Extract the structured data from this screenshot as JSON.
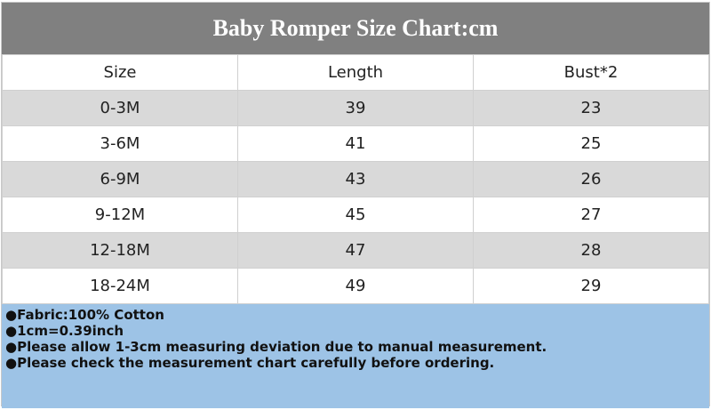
{
  "header": {
    "title": "Baby Romper Size Chart:cm"
  },
  "table": {
    "columns": [
      "Size",
      "Length",
      "Bust*2"
    ],
    "rows": [
      [
        "0-3M",
        39,
        23
      ],
      [
        "3-6M",
        41,
        25
      ],
      [
        "6-9M",
        43,
        26
      ],
      [
        "9-12M",
        45,
        27
      ],
      [
        "12-18M",
        47,
        28
      ],
      [
        "18-24M",
        49,
        29
      ]
    ]
  },
  "notes": [
    "●Fabric:100% Cotton",
    "●1cm=0.39inch",
    "●Please allow 1-3cm measuring deviation due to manual measurement.",
    "●Please check the measurement chart carefully before ordering."
  ]
}
